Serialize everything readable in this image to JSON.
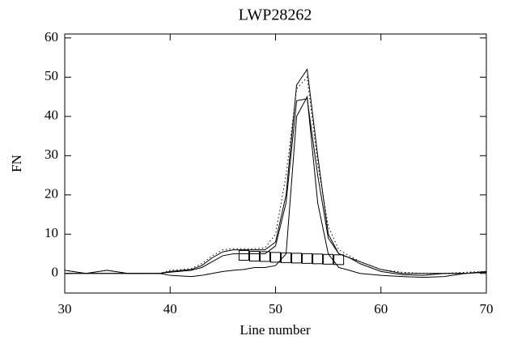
{
  "chart_data": {
    "type": "line",
    "title": "LWP28262",
    "xlabel": "Line number",
    "ylabel": "FN",
    "xlim": [
      30,
      70
    ],
    "xticks": [
      30,
      40,
      50,
      60,
      70
    ],
    "ylim": [
      -5,
      61
    ],
    "yticks": [
      0,
      10,
      20,
      30,
      40,
      50,
      60
    ],
    "x": [
      30,
      32,
      34,
      36,
      39,
      40,
      42,
      43,
      44,
      45,
      46,
      47,
      48,
      49,
      50,
      51,
      52,
      53,
      54,
      55,
      56,
      57,
      58,
      60,
      62,
      64,
      66,
      68,
      70
    ],
    "series": [
      {
        "color": "#000000",
        "style": "solid",
        "values": [
          0.8,
          0,
          0.8,
          0,
          0,
          0.5,
          1,
          2,
          4,
          5.5,
          6,
          6,
          6,
          6,
          8,
          20,
          48,
          52,
          30,
          10,
          5,
          4,
          3,
          1,
          0,
          0,
          0,
          0,
          0.3
        ]
      },
      {
        "color": "#000000",
        "style": "dotted",
        "values": [
          0.8,
          0,
          0.8,
          0,
          0,
          0.8,
          1.2,
          2.5,
          4.5,
          6,
          6.3,
          6.3,
          6.3,
          6.5,
          10,
          25,
          47,
          50,
          28,
          12,
          6,
          4.5,
          3,
          1,
          0.3,
          0,
          0,
          0.3,
          0.5
        ]
      },
      {
        "color": "#000000",
        "style": "solid",
        "values": [
          0,
          0,
          0,
          0,
          0,
          0.3,
          0.8,
          1.5,
          3,
          4.5,
          5,
          5,
          5,
          5,
          7,
          18,
          44,
          44.5,
          25,
          9,
          5,
          4,
          2.5,
          0.5,
          -0.3,
          -0.5,
          0,
          0,
          0.3
        ]
      },
      {
        "color": "#000000",
        "style": "solid",
        "values": [
          0,
          0,
          0,
          0,
          0,
          -0.5,
          -0.8,
          -0.5,
          0,
          0.5,
          0.8,
          1,
          1.5,
          1.5,
          2,
          5,
          40,
          45,
          18,
          5,
          1.5,
          0.8,
          0,
          -0.5,
          -0.8,
          -1,
          -0.8,
          0,
          0.5
        ]
      },
      {
        "color": "#000000",
        "style": "square",
        "x": [
          47,
          48,
          49,
          50,
          51,
          52,
          53,
          54,
          55,
          56
        ],
        "values": [
          4.6,
          4.4,
          4.3,
          4.1,
          4,
          3.9,
          3.8,
          3.7,
          3.6,
          3.5
        ]
      }
    ]
  }
}
